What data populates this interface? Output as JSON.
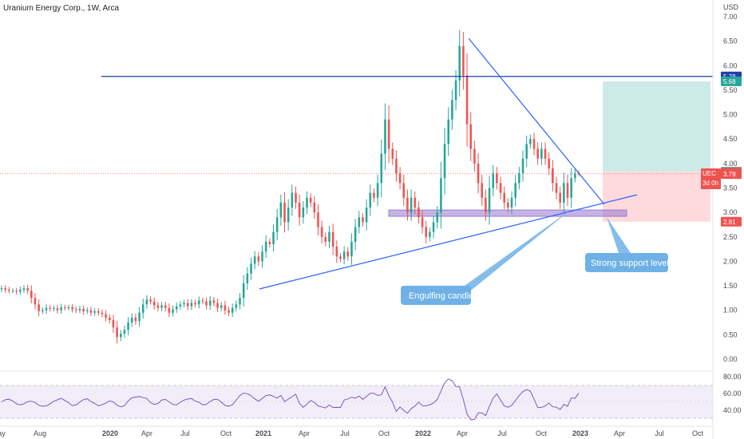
{
  "header": {
    "title": "Uranium Energy Corp., 1W, Arca",
    "currency": "USD"
  },
  "colors": {
    "up": "#26a69a",
    "down": "#ef5350",
    "trendline": "#2962ff",
    "resistance": "#1e40af",
    "support_zone": "#9575cd",
    "target_zone": "#b2dfdb",
    "stop_zone": "#ffcdd2",
    "callout": "#6fb1e6",
    "rsi_line": "#7e57c2",
    "rsi_band": "#ede7f6"
  },
  "annotations": {
    "engulfing": "Engulfing candle",
    "support": "Strong support level"
  },
  "price_labels": [
    {
      "text": "5.78",
      "bg": "#1e40af"
    },
    {
      "text": "5.68",
      "bg": "#26a69a"
    },
    {
      "text": "3.83",
      "bg": "#787b86"
    },
    {
      "text": "2.81",
      "bg": "#ef5350"
    }
  ],
  "current_price": {
    "symbol": "UEC",
    "value": "3.79",
    "countdown": "3d 0h",
    "bg": "#ef5350"
  },
  "chart_data": [
    {
      "type": "candlestick",
      "title": "Uranium Energy Corp., 1W, Arca",
      "ylabel": "USD",
      "ylim": [
        0,
        7.0
      ],
      "yticks": [
        "0.00",
        "0.50",
        "1.00",
        "1.50",
        "2.00",
        "2.50",
        "3.00",
        "3.50",
        "4.00",
        "4.50",
        "5.00",
        "5.50",
        "6.00",
        "6.50",
        "7.00"
      ],
      "xticks": [
        "ay",
        "Aug",
        "2020",
        "Apr",
        "Jul",
        "Oct",
        "2021",
        "Apr",
        "Jul",
        "Oct",
        "2022",
        "Apr",
        "Jul",
        "Oct",
        "2023",
        "Apr",
        "Jul",
        "Oct"
      ],
      "grid": false,
      "closes": [
        1.45,
        1.42,
        1.4,
        1.4,
        1.38,
        1.42,
        1.45,
        1.4,
        1.25,
        1.12,
        0.98,
        1.0,
        1.05,
        1.03,
        1.04,
        1.0,
        1.06,
        1.05,
        1.06,
        1.02,
        1.0,
        1.03,
        0.98,
        1.0,
        0.95,
        0.98,
        0.95,
        0.92,
        0.85,
        0.8,
        0.65,
        0.45,
        0.52,
        0.6,
        0.75,
        0.85,
        0.78,
        0.95,
        1.12,
        1.22,
        1.18,
        1.1,
        1.05,
        1.1,
        1.05,
        0.95,
        1.02,
        1.08,
        1.12,
        1.15,
        1.08,
        1.15,
        1.12,
        1.2,
        1.18,
        1.1,
        1.2,
        1.15,
        1.05,
        1.1,
        1.0,
        0.95,
        1.05,
        1.12,
        1.25,
        1.55,
        1.75,
        1.95,
        2.1,
        2.0,
        2.2,
        2.4,
        2.35,
        2.6,
        2.9,
        3.2,
        2.8,
        3.1,
        3.4,
        3.2,
        2.9,
        3.1,
        3.3,
        3.2,
        3.0,
        2.7,
        2.5,
        2.4,
        2.6,
        2.3,
        2.1,
        2.05,
        2.2,
        2.1,
        2.4,
        2.7,
        2.9,
        2.8,
        3.1,
        3.4,
        3.3,
        3.6,
        4.2,
        4.9,
        4.3,
        4.1,
        3.8,
        3.6,
        3.3,
        3.0,
        3.3,
        3.1,
        2.9,
        2.7,
        2.5,
        2.6,
        2.8,
        3.0,
        3.7,
        4.4,
        4.9,
        5.3,
        5.7,
        6.4,
        5.8,
        4.8,
        4.3,
        4.0,
        3.6,
        3.3,
        3.0,
        3.5,
        3.8,
        3.6,
        3.4,
        3.2,
        3.1,
        3.3,
        3.6,
        3.8,
        4.1,
        4.4,
        4.5,
        4.3,
        4.1,
        4.3,
        4.1,
        3.9,
        3.6,
        3.4,
        3.2,
        3.6,
        3.3,
        3.7,
        3.8,
        3.79
      ],
      "overlays": [
        {
          "type": "horizontal_line",
          "name": "resistance",
          "value": 5.78
        },
        {
          "type": "support_zone",
          "ymin": 2.92,
          "ymax": 3.05
        },
        {
          "type": "long_position",
          "entry": 3.83,
          "target": 5.68,
          "stop": 2.81
        }
      ]
    },
    {
      "type": "line",
      "name": "RSI",
      "ylim": [
        30,
        80
      ],
      "yticks": [
        "80.00",
        "60.00",
        "40.00"
      ],
      "band": [
        30,
        70
      ],
      "midline": 50
    }
  ]
}
